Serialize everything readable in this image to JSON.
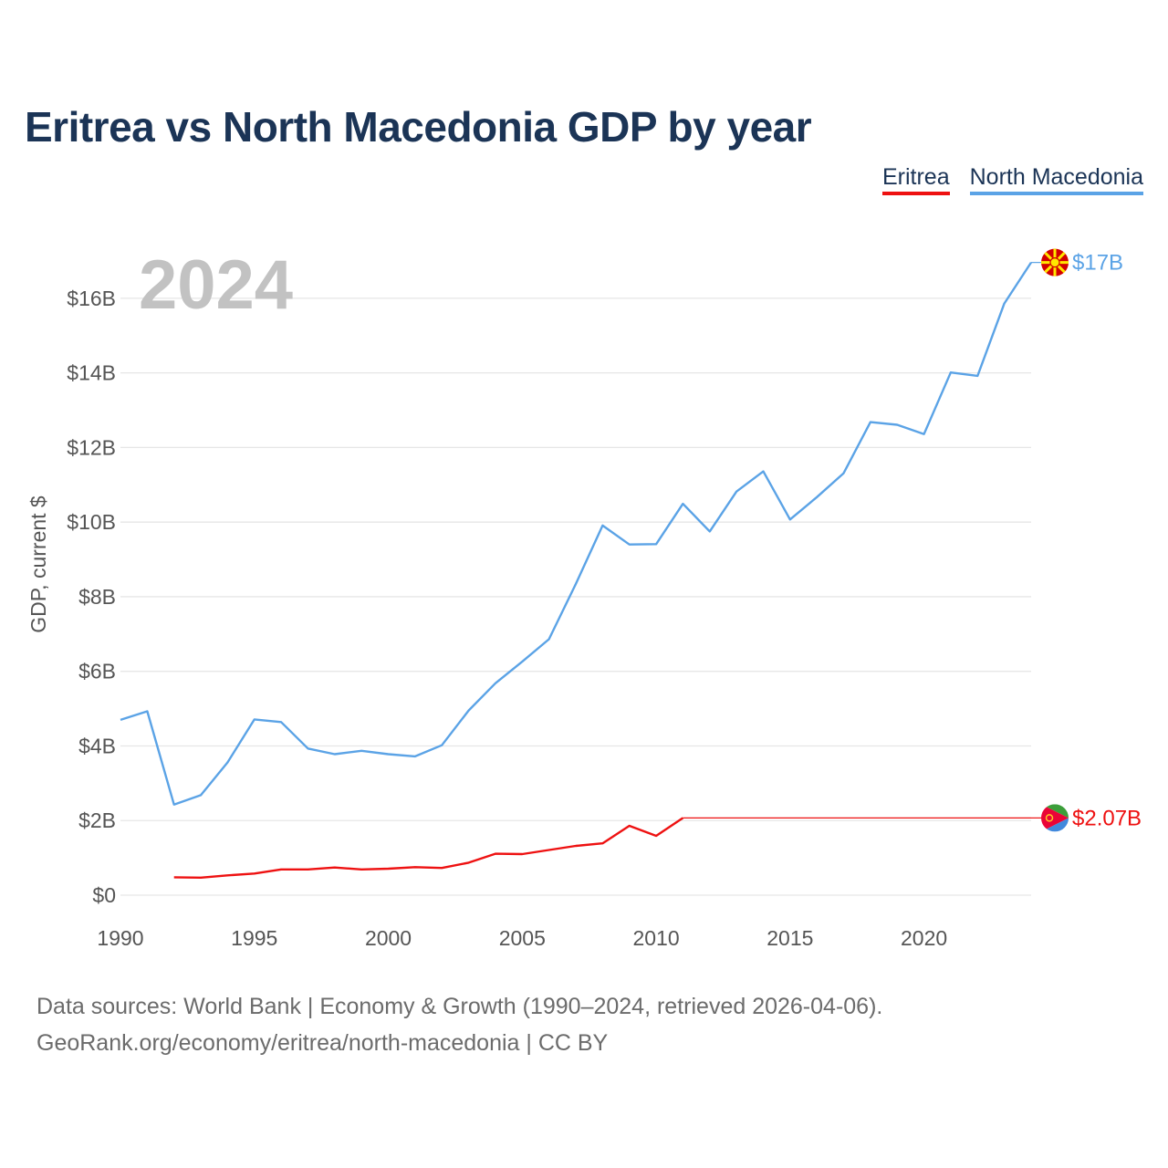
{
  "chart_data": {
    "type": "line",
    "title": "Eritrea vs North Macedonia GDP by year",
    "ylabel": "GDP, current $",
    "xlabel": "",
    "year_label": "2024",
    "ylim": [
      0,
      17
    ],
    "xlim": [
      1990,
      2024
    ],
    "y_ticks": [
      {
        "value": 0,
        "label": "$0"
      },
      {
        "value": 2,
        "label": "$2B"
      },
      {
        "value": 4,
        "label": "$4B"
      },
      {
        "value": 6,
        "label": "$6B"
      },
      {
        "value": 8,
        "label": "$8B"
      },
      {
        "value": 10,
        "label": "$10B"
      },
      {
        "value": 12,
        "label": "$12B"
      },
      {
        "value": 14,
        "label": "$14B"
      },
      {
        "value": 16,
        "label": "$16B"
      }
    ],
    "x_ticks": [
      {
        "value": 1990,
        "label": "1990"
      },
      {
        "value": 1995,
        "label": "1995"
      },
      {
        "value": 2000,
        "label": "2000"
      },
      {
        "value": 2005,
        "label": "2005"
      },
      {
        "value": 2010,
        "label": "2010"
      },
      {
        "value": 2015,
        "label": "2015"
      },
      {
        "value": 2020,
        "label": "2020"
      }
    ],
    "grid": true,
    "legend_position": "top-right",
    "series": [
      {
        "name": "Eritrea",
        "color": "#ee1111",
        "end_label": "$2.07B",
        "x": [
          1992,
          1993,
          1994,
          1995,
          1996,
          1997,
          1998,
          1999,
          2000,
          2001,
          2002,
          2003,
          2004,
          2005,
          2006,
          2007,
          2008,
          2009,
          2010,
          2011
        ],
        "values": [
          0.48,
          0.47,
          0.53,
          0.58,
          0.69,
          0.69,
          0.74,
          0.69,
          0.71,
          0.75,
          0.73,
          0.87,
          1.11,
          1.1,
          1.21,
          1.32,
          1.39,
          1.86,
          1.59,
          2.07
        ],
        "extended_to": 2024
      },
      {
        "name": "North Macedonia",
        "color": "#5ba3e6",
        "end_label": "$17B",
        "x": [
          1990,
          1991,
          1992,
          1993,
          1994,
          1995,
          1996,
          1997,
          1998,
          1999,
          2000,
          2001,
          2002,
          2003,
          2004,
          2005,
          2006,
          2007,
          2008,
          2009,
          2010,
          2011,
          2012,
          2013,
          2014,
          2015,
          2016,
          2017,
          2018,
          2019,
          2020,
          2021,
          2022,
          2023,
          2024
        ],
        "values": [
          4.7,
          4.93,
          2.43,
          2.68,
          3.56,
          4.71,
          4.64,
          3.93,
          3.78,
          3.87,
          3.78,
          3.72,
          4.02,
          4.95,
          5.68,
          6.26,
          6.86,
          8.34,
          9.91,
          9.4,
          9.41,
          10.49,
          9.75,
          10.82,
          11.36,
          10.07,
          10.67,
          11.31,
          12.68,
          12.61,
          12.36,
          14.01,
          13.92,
          15.86,
          16.96
        ]
      }
    ]
  },
  "source_line": "Data sources: World Bank | Economy & Growth (1990–2024, retrieved 2026-04-06).",
  "credit_line": "GeoRank.org/economy/eritrea/north-macedonia | CC BY"
}
